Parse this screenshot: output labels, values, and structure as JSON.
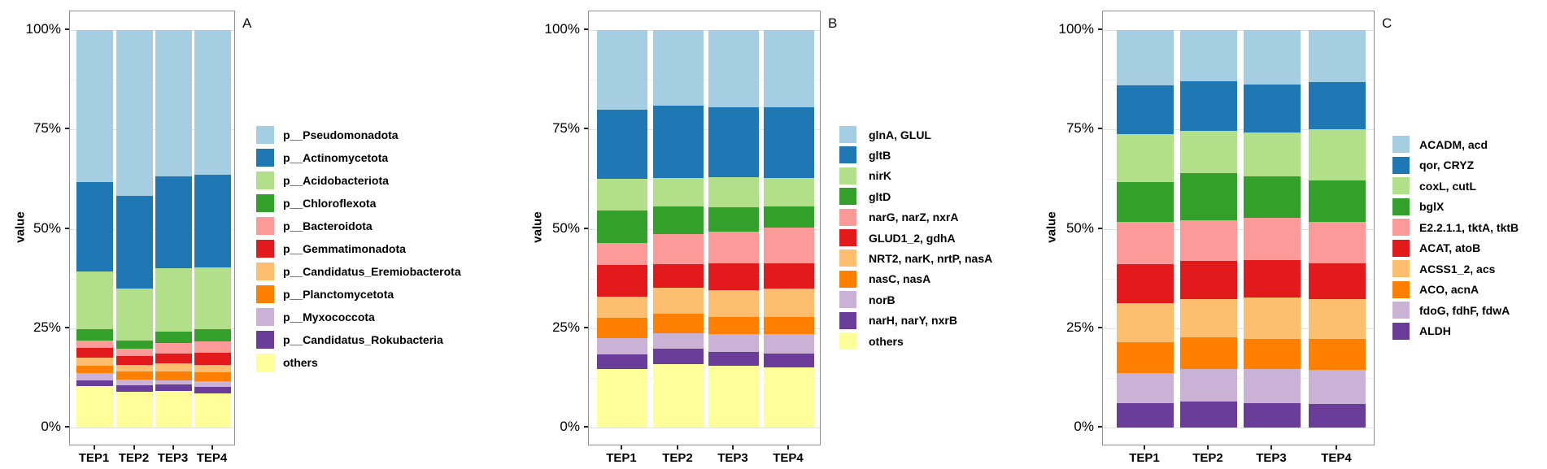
{
  "figure": {
    "y_axis_title": "value",
    "y_tick_labels": [
      "0%",
      "25%",
      "50%",
      "75%",
      "100%"
    ],
    "x_tick_labels": [
      "TEP1",
      "TEP2",
      "TEP3",
      "TEP4"
    ],
    "palette": {
      "light_blue": "#A6CEE3",
      "blue": "#1F78B4",
      "light_green": "#B2DF8A",
      "green": "#33A02C",
      "pink": "#FB9A99",
      "red": "#E31A1C",
      "light_orange": "#FDBF6F",
      "orange": "#FF7F00",
      "lavender": "#CAB2D6",
      "purple": "#6A3D9A",
      "yellow": "#FFFF99"
    }
  },
  "chart_data": [
    {
      "type": "bar",
      "stacked": true,
      "panel_label": "A",
      "ylabel": "value",
      "ylim": [
        0,
        100
      ],
      "y_ticks": [
        "0%",
        "25%",
        "50%",
        "75%",
        "100%"
      ],
      "grid": true,
      "legend_position": "right",
      "categories": [
        "TEP1",
        "TEP2",
        "TEP3",
        "TEP4"
      ],
      "series": [
        {
          "name": "p__Pseudomonadota",
          "color": "#A6CEE3",
          "values": [
            38.3,
            41.8,
            36.9,
            36.5
          ]
        },
        {
          "name": "p__Actinomycetota",
          "color": "#1F78B4",
          "values": [
            22.4,
            23.2,
            23.1,
            23.3
          ]
        },
        {
          "name": "p__Acidobacteriota",
          "color": "#B2DF8A",
          "values": [
            14.5,
            13.1,
            15.8,
            15.4
          ]
        },
        {
          "name": "p__Chloroflexota",
          "color": "#33A02C",
          "values": [
            2.9,
            2.0,
            2.9,
            3.1
          ]
        },
        {
          "name": "p__Bacteroidota",
          "color": "#FB9A99",
          "values": [
            1.8,
            1.9,
            2.7,
            2.8
          ]
        },
        {
          "name": "p__Gemmatimonadota",
          "color": "#E31A1C",
          "values": [
            2.5,
            2.2,
            2.4,
            3.1
          ]
        },
        {
          "name": "p__Candidatus_Eremiobacterota",
          "color": "#FDBF6F",
          "values": [
            2.0,
            1.7,
            2.1,
            1.9
          ]
        },
        {
          "name": "p__Planctomycetota",
          "color": "#FF7F00",
          "values": [
            1.9,
            2.0,
            2.2,
            2.2
          ]
        },
        {
          "name": "p__Myxococcota",
          "color": "#CAB2D6",
          "values": [
            1.8,
            1.4,
            1.1,
            1.5
          ]
        },
        {
          "name": "p__Candidatus_Rokubacteria",
          "color": "#6A3D9A",
          "values": [
            1.4,
            1.7,
            1.6,
            1.6
          ]
        },
        {
          "name": "others",
          "color": "#FFFF99",
          "values": [
            10.5,
            9.0,
            9.2,
            8.6
          ]
        }
      ]
    },
    {
      "type": "bar",
      "stacked": true,
      "panel_label": "B",
      "ylabel": "value",
      "ylim": [
        0,
        100
      ],
      "y_ticks": [
        "0%",
        "25%",
        "50%",
        "75%",
        "100%"
      ],
      "grid": true,
      "legend_position": "right",
      "categories": [
        "TEP1",
        "TEP2",
        "TEP3",
        "TEP4"
      ],
      "series": [
        {
          "name": "glnA, GLUL",
          "color": "#A6CEE3",
          "values": [
            20.0,
            19.0,
            19.5,
            19.5
          ]
        },
        {
          "name": "gltB",
          "color": "#1F78B4",
          "values": [
            17.5,
            18.3,
            17.6,
            17.8
          ]
        },
        {
          "name": "nirK",
          "color": "#B2DF8A",
          "values": [
            7.8,
            7.0,
            7.4,
            7.0
          ]
        },
        {
          "name": "gltD",
          "color": "#33A02C",
          "values": [
            8.2,
            7.1,
            6.3,
            5.5
          ]
        },
        {
          "name": "narG, narZ, nxrA",
          "color": "#FB9A99",
          "values": [
            5.7,
            7.4,
            7.8,
            9.0
          ]
        },
        {
          "name": "GLUD1_2, gdhA",
          "color": "#E31A1C",
          "values": [
            7.8,
            6.0,
            6.8,
            6.2
          ]
        },
        {
          "name": "NRT2, narK, nrtP, nasA",
          "color": "#FDBF6F",
          "values": [
            5.5,
            6.5,
            6.7,
            7.3
          ]
        },
        {
          "name": "nasC, nasA",
          "color": "#FF7F00",
          "values": [
            5.0,
            4.9,
            4.3,
            4.1
          ]
        },
        {
          "name": "norB",
          "color": "#CAB2D6",
          "values": [
            4.1,
            3.9,
            4.5,
            5.0
          ]
        },
        {
          "name": "narH, narY, nxrB",
          "color": "#6A3D9A",
          "values": [
            3.6,
            4.0,
            3.5,
            3.4
          ]
        },
        {
          "name": "others",
          "color": "#FFFF99",
          "values": [
            14.8,
            15.9,
            15.6,
            15.2
          ]
        }
      ]
    },
    {
      "type": "bar",
      "stacked": true,
      "panel_label": "C",
      "ylabel": "value",
      "ylim": [
        0,
        100
      ],
      "y_ticks": [
        "0%",
        "25%",
        "50%",
        "75%",
        "100%"
      ],
      "grid": true,
      "legend_position": "right",
      "categories": [
        "TEP1",
        "TEP2",
        "TEP3",
        "TEP4"
      ],
      "series": [
        {
          "name": "ACADM, acd",
          "color": "#A6CEE3",
          "values": [
            13.9,
            12.9,
            13.7,
            13.1
          ]
        },
        {
          "name": "qor,  CRYZ",
          "color": "#1F78B4",
          "values": [
            12.2,
            12.4,
            12.0,
            11.9
          ]
        },
        {
          "name": "coxL, cutL",
          "color": "#B2DF8A",
          "values": [
            12.1,
            10.6,
            11.2,
            12.8
          ]
        },
        {
          "name": "bglX",
          "color": "#33A02C",
          "values": [
            10.0,
            11.9,
            10.4,
            10.4
          ]
        },
        {
          "name": "E2.2.1.1, tktA, tktB",
          "color": "#FB9A99",
          "values": [
            10.6,
            10.2,
            10.5,
            10.6
          ]
        },
        {
          "name": "ACAT, atoB",
          "color": "#E31A1C",
          "values": [
            10.0,
            9.6,
            9.5,
            9.0
          ]
        },
        {
          "name": "ACSS1_2, acs",
          "color": "#FDBF6F",
          "values": [
            9.8,
            9.7,
            10.5,
            10.0
          ]
        },
        {
          "name": "ACO, acnA",
          "color": "#FF7F00",
          "values": [
            7.7,
            8.0,
            7.5,
            7.7
          ]
        },
        {
          "name": "fdoG, fdhF, fdwA",
          "color": "#CAB2D6",
          "values": [
            7.6,
            8.2,
            8.6,
            8.6
          ]
        },
        {
          "name": "ALDH",
          "color": "#6A3D9A",
          "values": [
            6.1,
            6.5,
            6.1,
            5.9
          ]
        }
      ]
    }
  ]
}
